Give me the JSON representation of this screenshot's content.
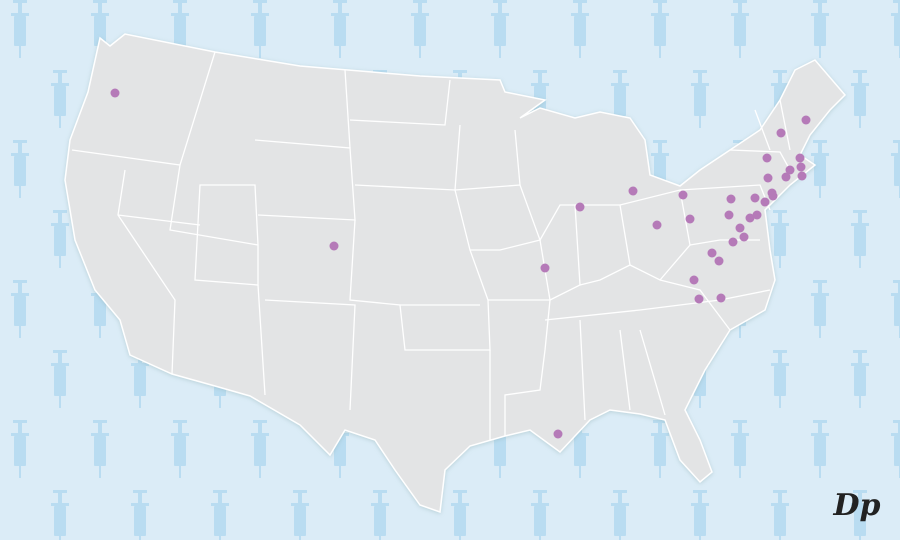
{
  "logo": {
    "text": "Dp"
  }
}
